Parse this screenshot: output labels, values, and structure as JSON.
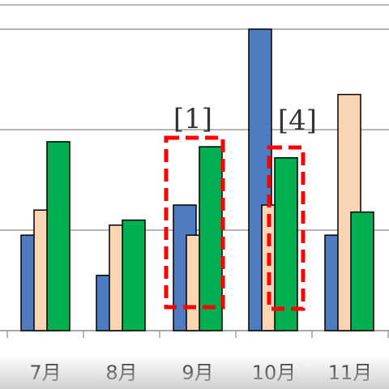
{
  "chart_data": {
    "type": "bar",
    "categories": [
      "7月",
      "8月",
      "9月",
      "10月",
      "11月"
    ],
    "series": [
      {
        "color": "#4f7cc0",
        "values": [
          95,
          55,
          125,
          300,
          95
        ]
      },
      {
        "color": "#fad5b4",
        "values": [
          120,
          105,
          95,
          125,
          235
        ]
      },
      {
        "color": "#00b050",
        "values": [
          188,
          110,
          183,
          172,
          118
        ]
      }
    ],
    "ylim": [
      0,
      300
    ],
    "grid": true,
    "annotations": [
      {
        "label": "[1]",
        "category": "9月"
      },
      {
        "label": "[4]",
        "category": "10月"
      }
    ]
  }
}
